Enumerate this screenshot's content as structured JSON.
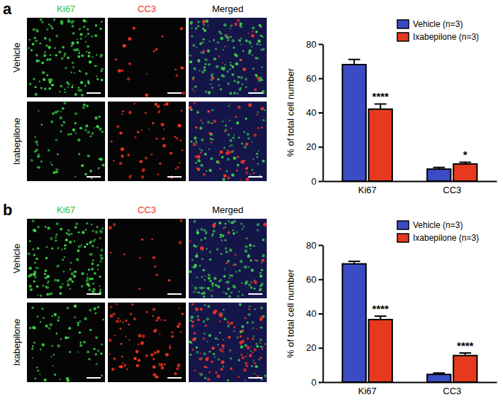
{
  "figure": {
    "panel_labels": [
      "a",
      "b"
    ],
    "image_columns": [
      "Ki67",
      "CC3",
      "Merged"
    ],
    "image_rows": [
      "Vehicle",
      "Ixabepilone"
    ]
  },
  "chart_data": [
    {
      "type": "bar",
      "y_label": "% of total cell number",
      "categories": [
        "Ki67",
        "CC3"
      ],
      "series": [
        {
          "name": "Vehicle (n=3)",
          "color": "#3b4bc4",
          "values": [
            68,
            7
          ],
          "errors": [
            3,
            1
          ]
        },
        {
          "name": "Ixabepilone (n=3)",
          "color": "#e63a1f",
          "values": [
            42,
            10
          ],
          "errors": [
            3,
            1
          ],
          "significance": [
            "****",
            "*"
          ]
        }
      ],
      "ylim": [
        0,
        80
      ],
      "yticks": [
        0,
        20,
        40,
        60,
        80
      ],
      "legend": "upper right"
    },
    {
      "type": "bar",
      "y_label": "% of total cell number",
      "categories": [
        "Ki67",
        "CC3"
      ],
      "series": [
        {
          "name": "Vehicle (n=3)",
          "color": "#3b4bc4",
          "values": [
            69,
            4.5
          ],
          "errors": [
            1.5,
            0.8
          ]
        },
        {
          "name": "Ixabepilone (n=3)",
          "color": "#e63a1f",
          "values": [
            36.5,
            15.5
          ],
          "errors": [
            2,
            1.5
          ],
          "significance": [
            "****",
            "****"
          ]
        }
      ],
      "ylim": [
        0,
        80
      ],
      "yticks": [
        0,
        20,
        40,
        60,
        80
      ],
      "legend": "upper right"
    }
  ]
}
